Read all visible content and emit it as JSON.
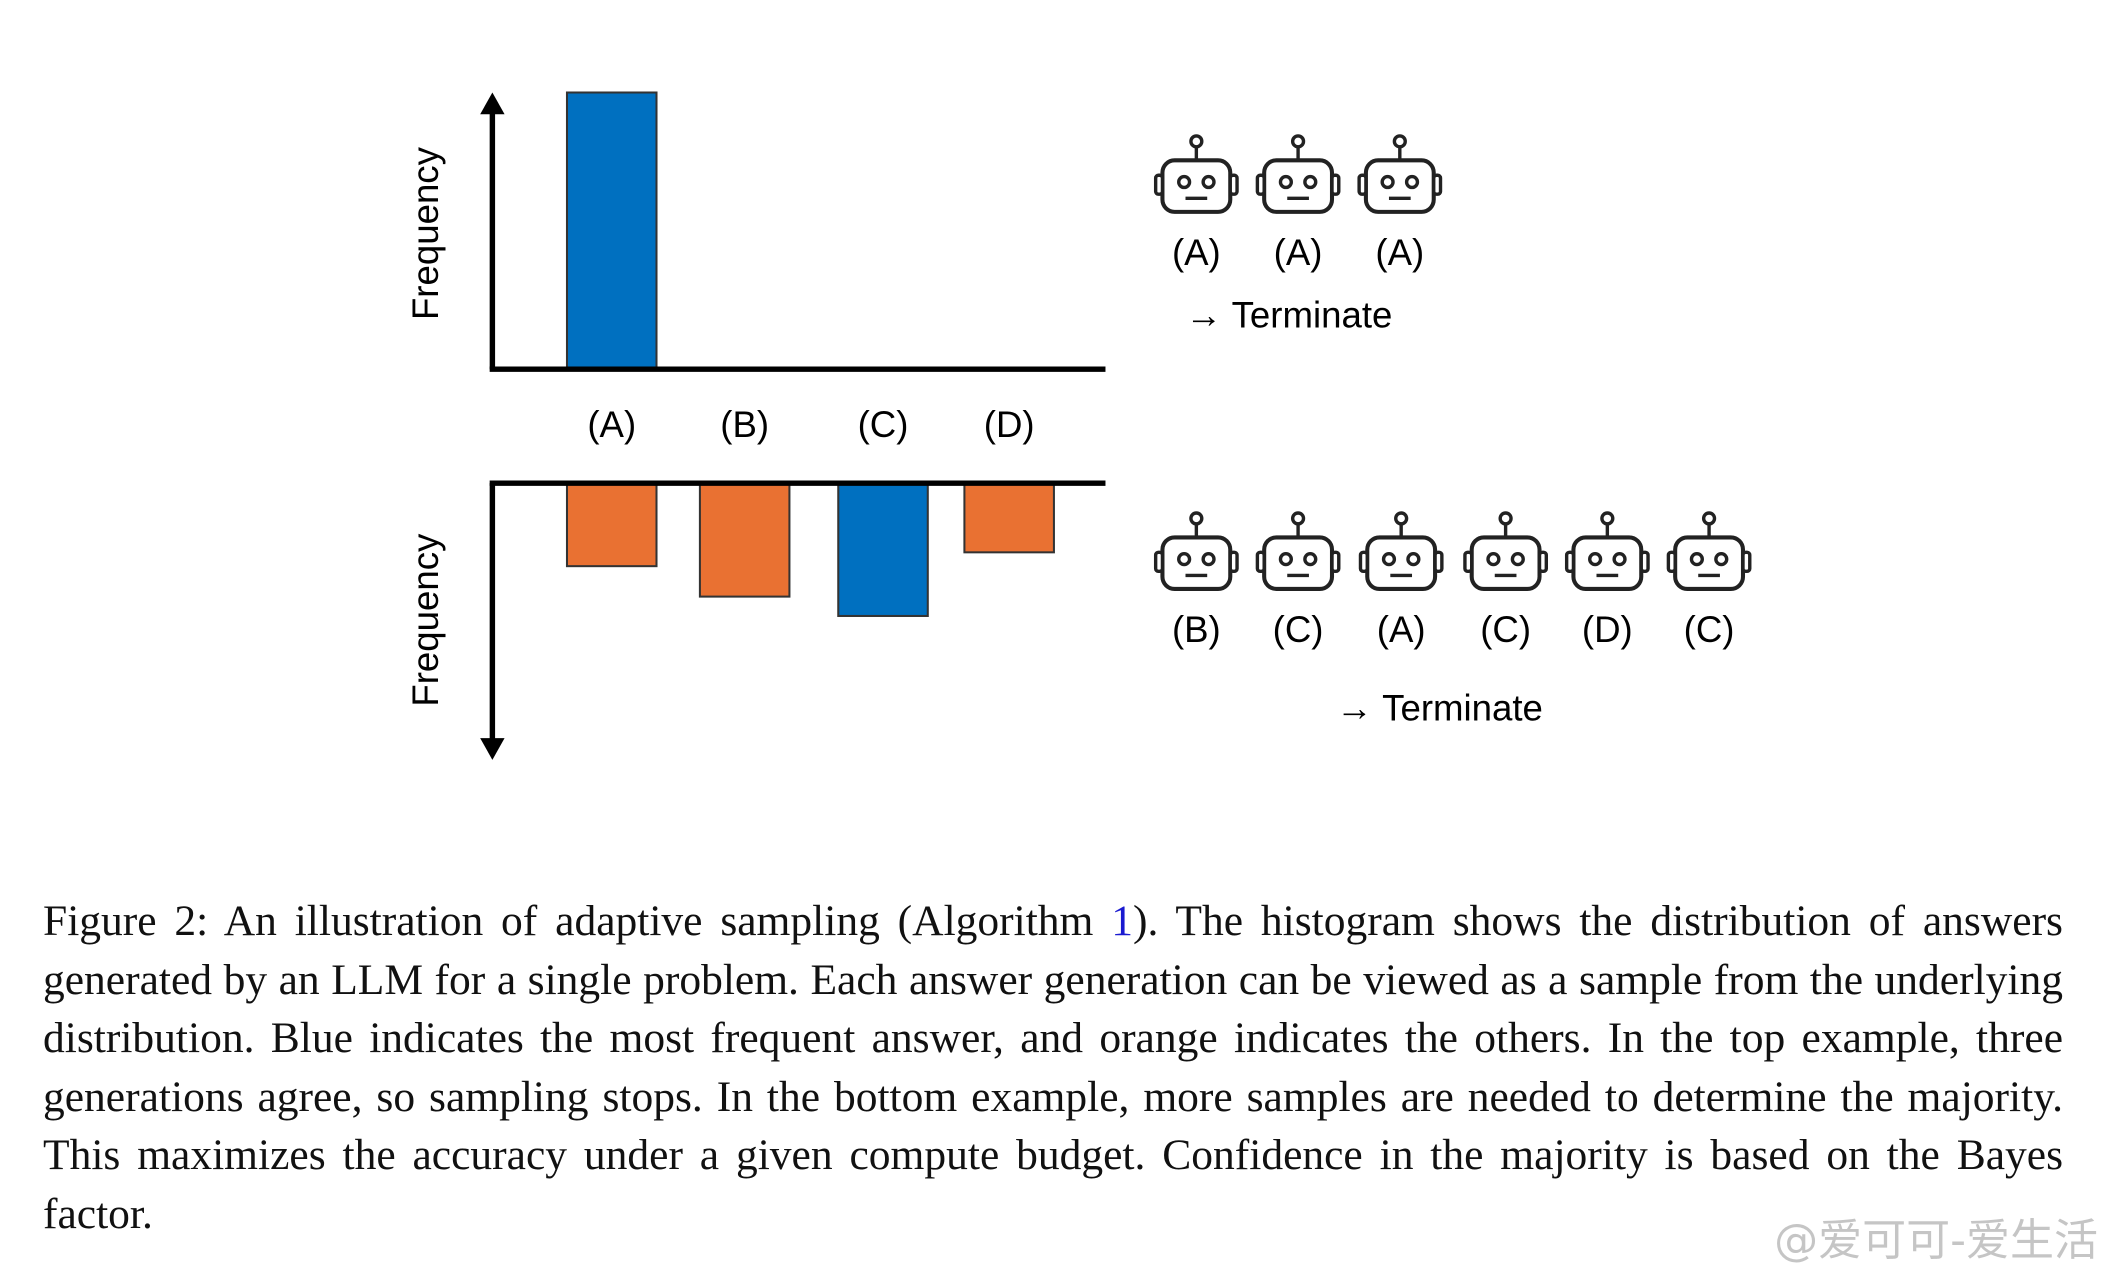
{
  "figure": {
    "panels": [
      {
        "ylabel": "Frequency",
        "direction": "up",
        "ylim": [
          0,
          100
        ],
        "categories": [
          "(A)",
          "(B)",
          "(C)",
          "(D)"
        ],
        "values": [
          100,
          0,
          0,
          0
        ],
        "colors": [
          "#0070c0",
          "#e97132",
          "#e97132",
          "#e97132"
        ],
        "samples": [
          "(A)",
          "(A)",
          "(A)"
        ],
        "action": "→ Terminate"
      },
      {
        "ylabel": "Frequency",
        "direction": "down",
        "ylim": [
          0,
          100
        ],
        "values": [
          30,
          41,
          48,
          25
        ],
        "colors": [
          "#e97132",
          "#e97132",
          "#0070c0",
          "#e97132"
        ],
        "samples": [
          "(B)",
          "(C)",
          "(A)",
          "(C)",
          "(D)",
          "(C)"
        ],
        "action": "→ Terminate"
      }
    ],
    "caption": {
      "before": "Figure 2:  An illustration of adaptive sampling (Algorithm ",
      "ref": "1",
      "after": ").  The histogram shows the distribution of answers generated by an LLM for a single problem.  Each answer generation can be viewed as a sample from the underlying distribution. Blue indicates the most frequent answer, and orange indicates the others. In the top example, three generations agree, so sampling stops.  In the bottom example, more samples are needed to determine the majority. This maximizes the accuracy under a given compute budget. Confidence in the majority is based on the Bayes factor."
    },
    "watermark": "@爱可可-爱生活"
  }
}
